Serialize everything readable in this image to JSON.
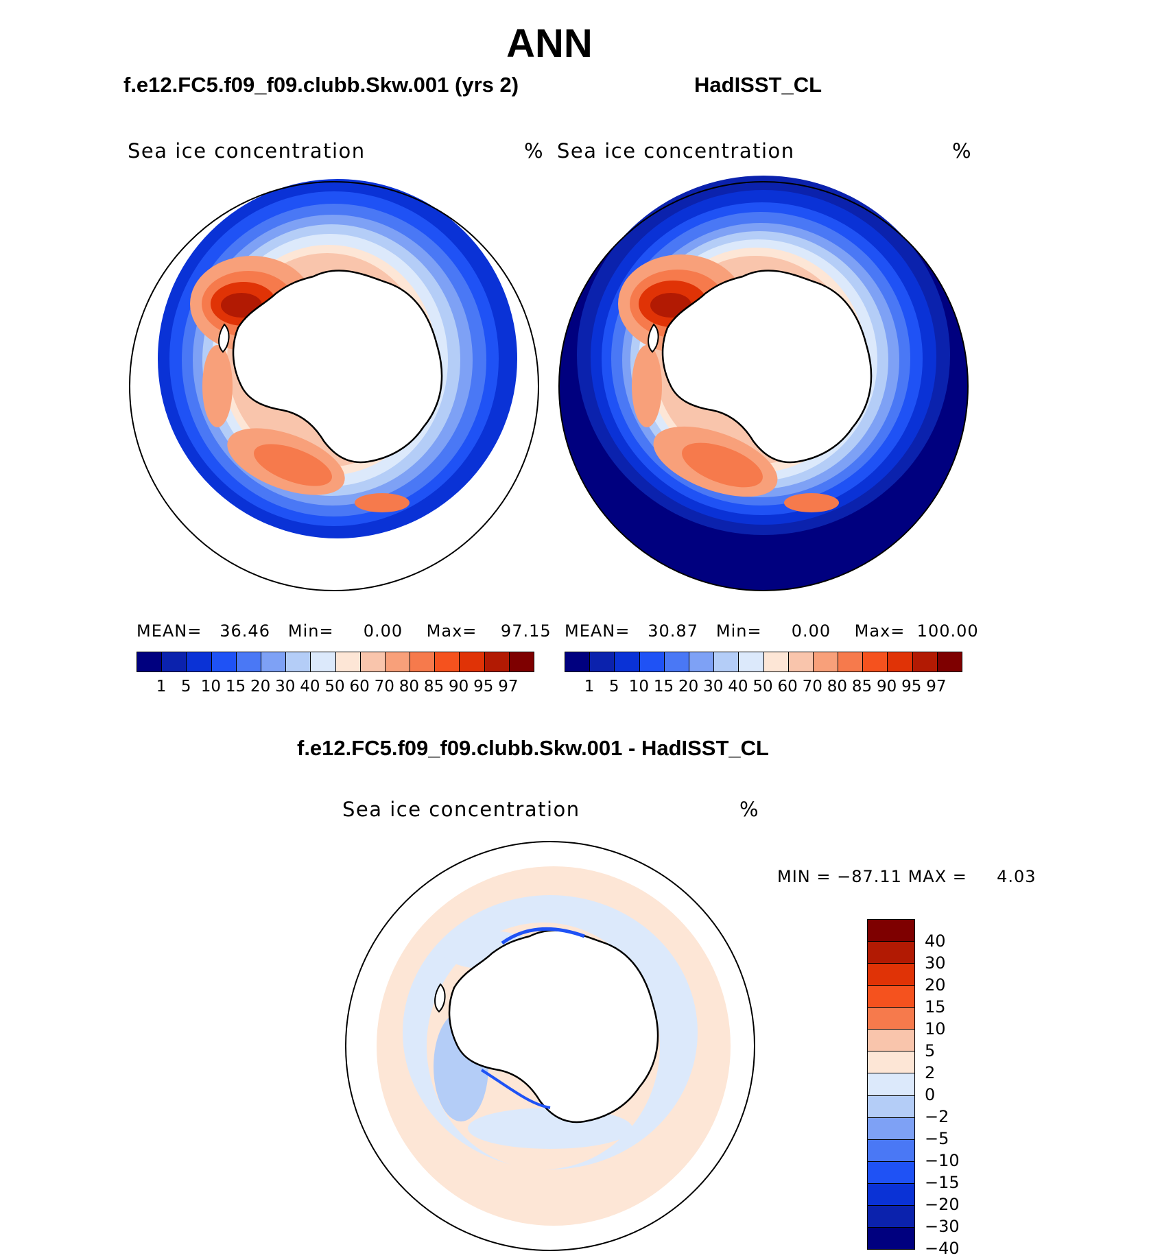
{
  "title": "ANN",
  "panels": {
    "model": {
      "heading": "f.e12.FC5.f09_f09.clubb.Skw.001 (yrs 2)",
      "label": "Sea ice concentration",
      "unit": "%",
      "stats": {
        "mean_label": "MEAN=",
        "mean": "36.46",
        "min_label": "Min=",
        "min": "0.00",
        "max_label": "Max=",
        "max": "97.15"
      }
    },
    "obs": {
      "heading": "HadISST_CL",
      "label": "Sea ice concentration",
      "unit": "%",
      "stats": {
        "mean_label": "MEAN=",
        "mean": "30.87",
        "min_label": "Min=",
        "min": "0.00",
        "max_label": "Max=",
        "max": "100.00"
      }
    },
    "diff": {
      "heading": "f.e12.FC5.f09_f09.clubb.Skw.001 - HadISST_CL",
      "label": "Sea ice concentration",
      "unit": "%",
      "stats": {
        "min_label": "MIN =",
        "min": "−87.11",
        "max_label": "MAX =",
        "max": "4.03"
      }
    }
  },
  "colorbar_abs": {
    "colors": [
      "#00007f",
      "#0b22ad",
      "#0a32d6",
      "#1f52f5",
      "#4a78f5",
      "#7ea1f5",
      "#b4cdf7",
      "#dce9fb",
      "#fde6d6",
      "#f9c5ac",
      "#f8a07a",
      "#f67a4c",
      "#f5521e",
      "#e03306",
      "#b21a03",
      "#7e0000"
    ],
    "labels": [
      "1",
      "5",
      "10",
      "15",
      "20",
      "30",
      "40",
      "50",
      "60",
      "70",
      "80",
      "85",
      "90",
      "95",
      "97"
    ]
  },
  "colorbar_diff": {
    "colors": [
      "#7e0000",
      "#b21a03",
      "#e03306",
      "#f5521e",
      "#f67a4c",
      "#f9c5ac",
      "#fde6d6",
      "#dce9fb",
      "#b4cdf7",
      "#7ea1f5",
      "#4a78f5",
      "#1f52f5",
      "#0a32d6",
      "#0b22ad",
      "#00007f"
    ],
    "labels": [
      "40",
      "30",
      "20",
      "15",
      "10",
      "5",
      "2",
      "0",
      "−2",
      "−5",
      "−10",
      "−15",
      "−20",
      "−30",
      "−40"
    ]
  }
}
